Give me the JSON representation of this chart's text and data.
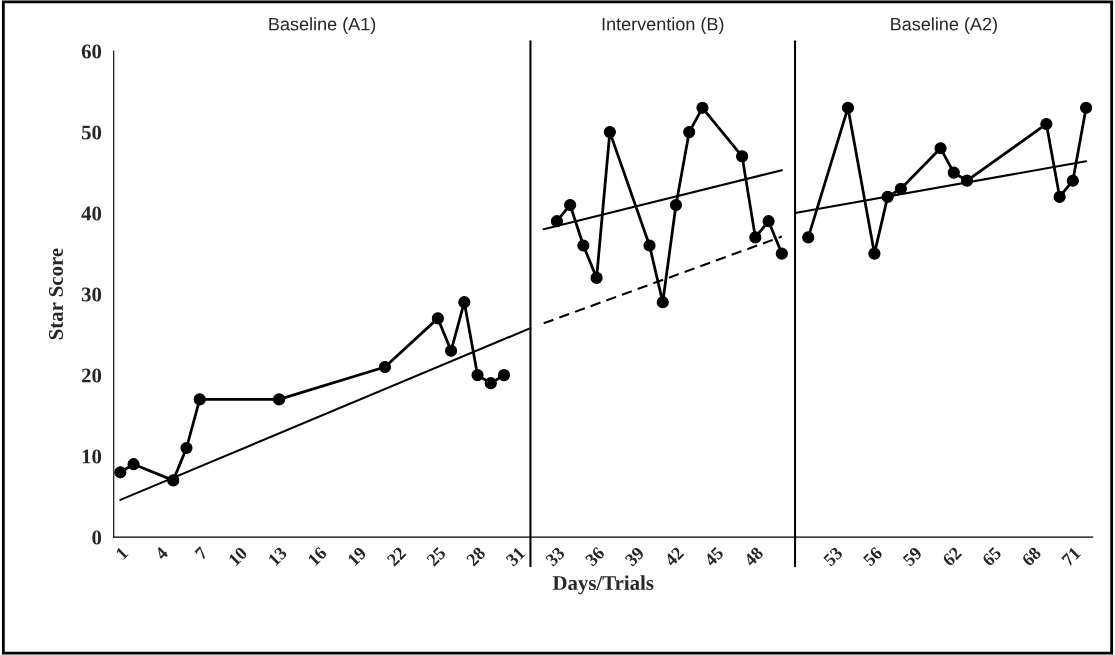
{
  "chart_data": {
    "type": "line",
    "xlabel": "Days/Trials",
    "ylabel": "Star Score",
    "annotations": [
      "Baseline (A1)",
      "Intervention (B)",
      "Baseline (A2)"
    ],
    "categories": [
      "1",
      null,
      null,
      "4",
      null,
      null,
      "7",
      null,
      null,
      "10",
      null,
      null,
      "13",
      null,
      null,
      "16",
      null,
      null,
      "19",
      null,
      null,
      "22",
      null,
      null,
      "25",
      null,
      null,
      "28",
      null,
      null,
      "31",
      null,
      null,
      "33",
      null,
      null,
      "36",
      null,
      null,
      "39",
      null,
      null,
      "42",
      null,
      null,
      "45",
      null,
      null,
      "48",
      null,
      null,
      null,
      null,
      null,
      "53",
      null,
      null,
      "56",
      null,
      null,
      "59",
      null,
      null,
      "62",
      null,
      null,
      "65",
      null,
      null,
      "68",
      null,
      null,
      "71",
      null
    ],
    "ylim": [
      0,
      60
    ],
    "yticks": [
      0,
      10,
      20,
      30,
      40,
      50,
      60
    ],
    "grid": false,
    "series": [
      {
        "color": "#000000",
        "marker": "circle",
        "line_style": "solid",
        "values": [
          8,
          9,
          null,
          null,
          7,
          11,
          17,
          null,
          null,
          null,
          null,
          null,
          17,
          null,
          null,
          null,
          null,
          null,
          null,
          null,
          21,
          null,
          null,
          null,
          27,
          23,
          29,
          20,
          19,
          20,
          null,
          null,
          null,
          null,
          null,
          null,
          null,
          null,
          null,
          null,
          null,
          null,
          null,
          null,
          null,
          null,
          null,
          null,
          null,
          null,
          null,
          null,
          null,
          null,
          null,
          null,
          null,
          null,
          null,
          null,
          null,
          null,
          null,
          null,
          null,
          null,
          null,
          null,
          null,
          null,
          null,
          null,
          null,
          null
        ]
      },
      {
        "color": "#000000",
        "marker": "circle",
        "line_style": "solid",
        "values": [
          null,
          null,
          null,
          null,
          null,
          null,
          null,
          null,
          null,
          null,
          null,
          null,
          null,
          null,
          null,
          null,
          null,
          null,
          null,
          null,
          null,
          null,
          null,
          null,
          null,
          null,
          null,
          null,
          null,
          null,
          null,
          null,
          null,
          39,
          41,
          36,
          32,
          50,
          null,
          null,
          36,
          29,
          41,
          50,
          53,
          null,
          null,
          47,
          37,
          39,
          35,
          null,
          null,
          null,
          null,
          null,
          null,
          null,
          null,
          null,
          null,
          null,
          null,
          null,
          null,
          null,
          null,
          null,
          null,
          null,
          null,
          null,
          null,
          null
        ]
      },
      {
        "color": "#000000",
        "marker": "circle",
        "line_style": "solid",
        "values": [
          null,
          null,
          null,
          null,
          null,
          null,
          null,
          null,
          null,
          null,
          null,
          null,
          null,
          null,
          null,
          null,
          null,
          null,
          null,
          null,
          null,
          null,
          null,
          null,
          null,
          null,
          null,
          null,
          null,
          null,
          null,
          null,
          null,
          null,
          null,
          null,
          null,
          null,
          null,
          null,
          null,
          null,
          null,
          null,
          null,
          null,
          null,
          null,
          null,
          null,
          null,
          null,
          37,
          null,
          null,
          53,
          null,
          35,
          42,
          43,
          null,
          null,
          48,
          45,
          44,
          null,
          null,
          null,
          null,
          null,
          51,
          42,
          44,
          53
        ]
      },
      {
        "color": "#000000",
        "marker": "none",
        "line_style": "solid",
        "values": [
          4.6,
          null,
          null,
          null,
          null,
          null,
          null,
          null,
          null,
          null,
          null,
          null,
          null,
          null,
          null,
          null,
          null,
          null,
          null,
          null,
          null,
          null,
          null,
          null,
          null,
          null,
          null,
          null,
          null,
          null,
          null,
          25.8,
          null,
          null,
          null,
          null,
          null,
          null,
          null,
          null,
          null,
          null,
          null,
          null,
          null,
          null,
          null,
          null,
          null,
          null,
          null,
          null,
          null,
          null,
          null,
          null,
          null,
          null,
          null,
          null,
          null,
          null,
          null,
          null,
          null,
          null,
          null,
          null,
          null,
          null,
          null,
          null,
          null,
          null
        ]
      },
      {
        "color": "#000000",
        "marker": "none",
        "line_style": "dashed",
        "values": [
          null,
          null,
          null,
          null,
          null,
          null,
          null,
          null,
          null,
          null,
          null,
          null,
          null,
          null,
          null,
          null,
          null,
          null,
          null,
          null,
          null,
          null,
          null,
          null,
          null,
          null,
          null,
          null,
          null,
          null,
          null,
          null,
          26.4,
          null,
          null,
          null,
          null,
          null,
          null,
          null,
          null,
          null,
          null,
          null,
          null,
          null,
          null,
          null,
          null,
          null,
          37.1,
          null,
          null,
          null,
          null,
          null,
          null,
          null,
          null,
          null,
          null,
          null,
          null,
          null,
          null,
          null,
          null,
          null,
          null,
          null,
          null,
          null,
          null,
          null
        ]
      },
      {
        "color": "#000000",
        "marker": "none",
        "line_style": "solid",
        "values": [
          null,
          null,
          null,
          null,
          null,
          null,
          null,
          null,
          null,
          null,
          null,
          null,
          null,
          null,
          null,
          null,
          null,
          null,
          null,
          null,
          null,
          null,
          null,
          null,
          null,
          null,
          null,
          null,
          null,
          null,
          null,
          null,
          38.0,
          null,
          null,
          null,
          null,
          null,
          null,
          null,
          null,
          null,
          null,
          null,
          null,
          null,
          null,
          null,
          null,
          null,
          45.3,
          null,
          null,
          null,
          null,
          null,
          null,
          null,
          null,
          null,
          null,
          null,
          null,
          null,
          null,
          null,
          null,
          null,
          null,
          null,
          null,
          null,
          null,
          null
        ]
      },
      {
        "color": "#000000",
        "marker": "none",
        "line_style": "solid",
        "values": [
          null,
          null,
          null,
          null,
          null,
          null,
          null,
          null,
          null,
          null,
          null,
          null,
          null,
          null,
          null,
          null,
          null,
          null,
          null,
          null,
          null,
          null,
          null,
          null,
          null,
          null,
          null,
          null,
          null,
          null,
          null,
          null,
          null,
          null,
          null,
          null,
          null,
          null,
          null,
          null,
          null,
          null,
          null,
          null,
          null,
          null,
          null,
          null,
          null,
          null,
          null,
          40.0,
          null,
          null,
          null,
          null,
          null,
          null,
          null,
          null,
          null,
          null,
          null,
          null,
          null,
          null,
          null,
          null,
          null,
          null,
          null,
          null,
          null,
          46.4
        ]
      }
    ]
  }
}
